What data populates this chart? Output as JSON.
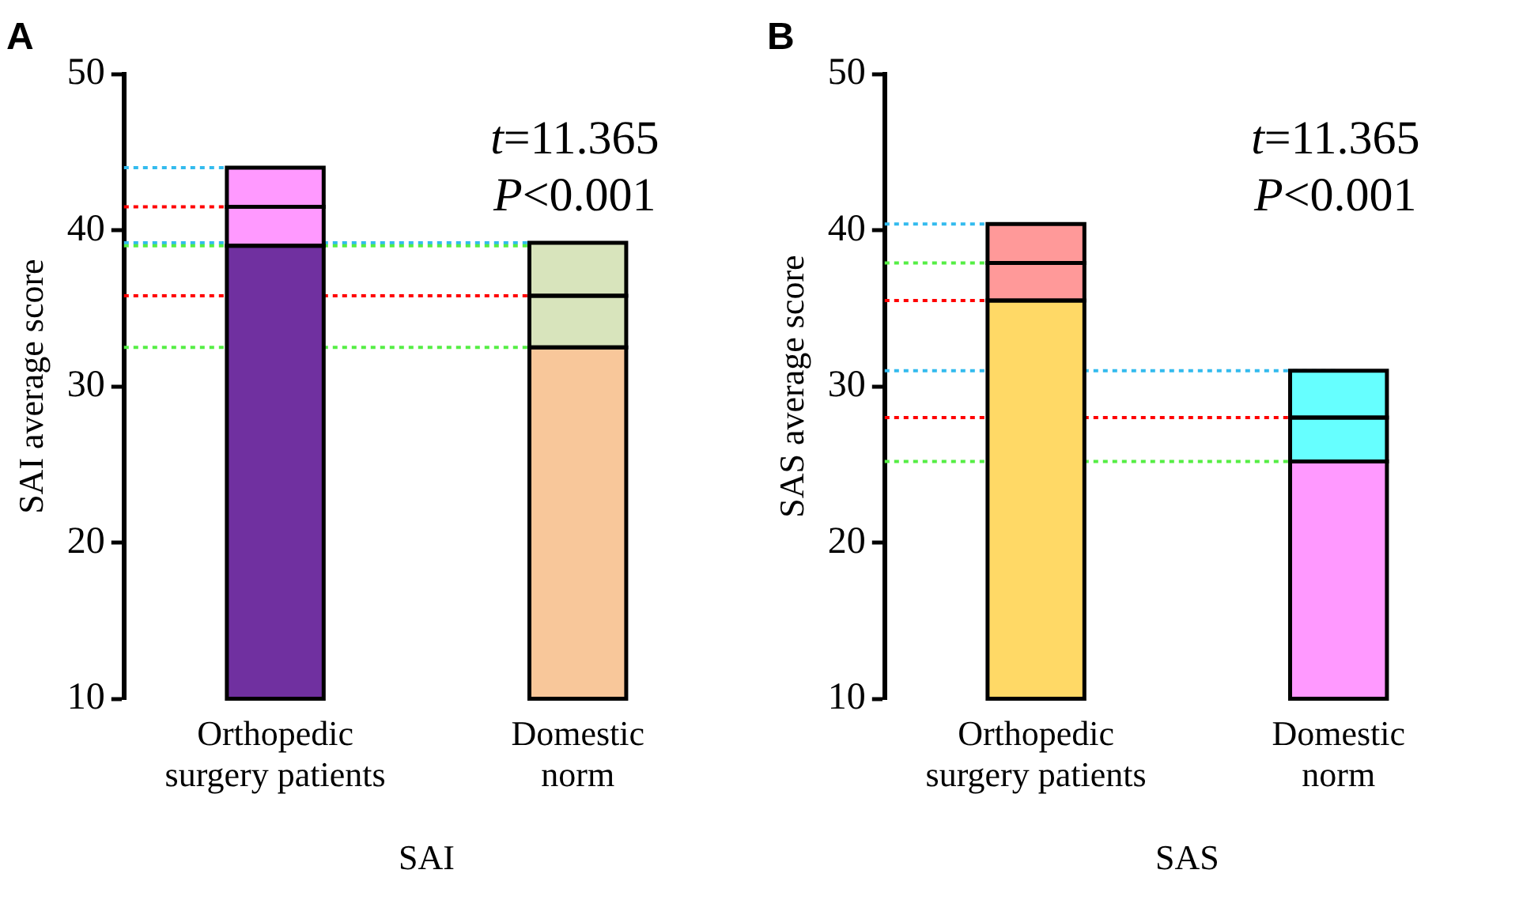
{
  "chart_data": [
    {
      "type": "bar",
      "title": "A",
      "xlabel": "SAI",
      "ylabel": "SAI average score",
      "categories": [
        "Orthopedic surgery patients",
        "Domestic norm"
      ],
      "series": [
        {
          "colors": [
            "#7030a0",
            "#f8c79a"
          ],
          "base": [
            10,
            10
          ],
          "values": [
            29.0,
            22.5
          ]
        },
        {
          "colors": [
            "#ff99ff",
            "#d8e4bc"
          ],
          "base": [
            39.0,
            32.5
          ],
          "values": [
            2.5,
            3.3
          ]
        },
        {
          "colors": [
            "#ff99ff",
            "#d8e4bc"
          ],
          "base": [
            41.5,
            35.8
          ],
          "values": [
            2.5,
            3.4
          ]
        }
      ],
      "ylim": [
        10,
        50
      ],
      "yticks": [
        10,
        20,
        30,
        40,
        50
      ],
      "grid": false,
      "legend": false,
      "ref_lines": [
        {
          "axis": "y",
          "value": 44.0,
          "color": "#33bbee",
          "line_style": "dotted"
        },
        {
          "axis": "y",
          "value": 41.5,
          "color": "#ff0000",
          "line_style": "dotted"
        },
        {
          "axis": "y",
          "value": 39.2,
          "color": "#33bbee",
          "line_style": "dotted"
        },
        {
          "axis": "y",
          "value": 39.0,
          "color": "#55ee44",
          "line_style": "dotted"
        },
        {
          "axis": "y",
          "value": 35.8,
          "color": "#ff0000",
          "line_style": "dotted"
        },
        {
          "axis": "y",
          "value": 32.5,
          "color": "#55ee44",
          "line_style": "dotted"
        }
      ],
      "annotations": [
        "t=11.365",
        "P<0.001"
      ]
    },
    {
      "type": "bar",
      "title": "B",
      "xlabel": "SAS",
      "ylabel": "SAS average score",
      "categories": [
        "Orthopedic surgery patients",
        "Domestic norm"
      ],
      "series": [
        {
          "colors": [
            "#ffd966",
            "#ff99ff"
          ],
          "base": [
            10,
            10
          ],
          "values": [
            25.5,
            15.2
          ]
        },
        {
          "colors": [
            "#ff9999",
            "#66ffff"
          ],
          "base": [
            35.5,
            25.2
          ],
          "values": [
            2.4,
            2.8
          ]
        },
        {
          "colors": [
            "#ff9999",
            "#66ffff"
          ],
          "base": [
            37.9,
            28.0
          ],
          "values": [
            2.5,
            3.0
          ]
        }
      ],
      "ylim": [
        10,
        50
      ],
      "yticks": [
        10,
        20,
        30,
        40,
        50
      ],
      "grid": false,
      "legend": false,
      "ref_lines": [
        {
          "axis": "y",
          "value": 40.4,
          "color": "#33bbee",
          "line_style": "dotted"
        },
        {
          "axis": "y",
          "value": 37.9,
          "color": "#55ee44",
          "line_style": "dotted"
        },
        {
          "axis": "y",
          "value": 35.5,
          "color": "#ff0000",
          "line_style": "dotted"
        },
        {
          "axis": "y",
          "value": 31.0,
          "color": "#33bbee",
          "line_style": "dotted"
        },
        {
          "axis": "y",
          "value": 28.0,
          "color": "#ff0000",
          "line_style": "dotted"
        },
        {
          "axis": "y",
          "value": 25.2,
          "color": "#55ee44",
          "line_style": "dotted"
        }
      ],
      "annotations": [
        "t=11.365",
        "P<0.001"
      ]
    }
  ]
}
